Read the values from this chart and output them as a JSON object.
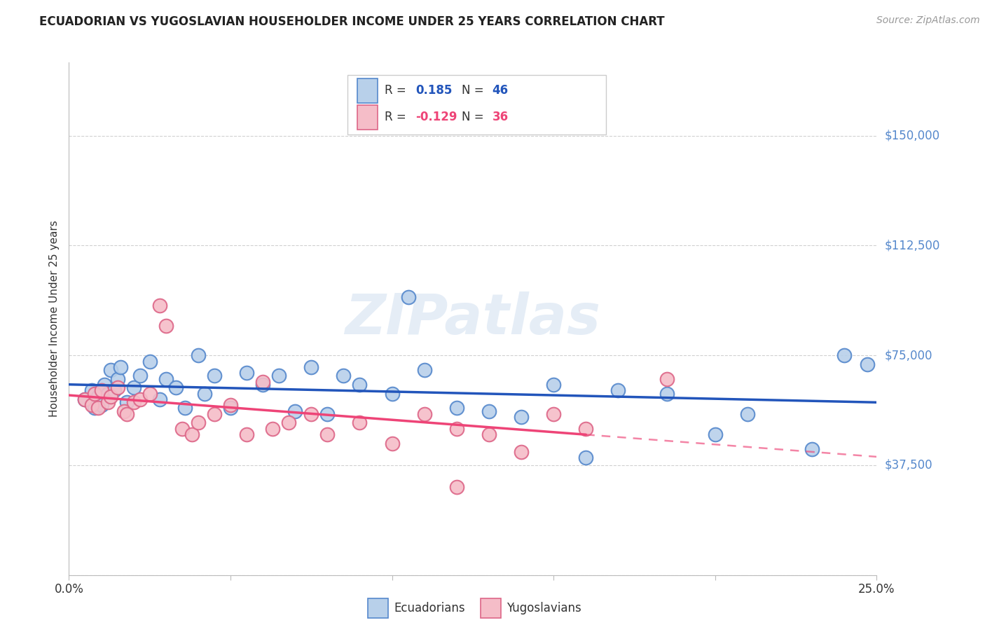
{
  "title": "ECUADORIAN VS YUGOSLAVIAN HOUSEHOLDER INCOME UNDER 25 YEARS CORRELATION CHART",
  "source": "Source: ZipAtlas.com",
  "ylabel": "Householder Income Under 25 years",
  "xlim": [
    0.0,
    0.25
  ],
  "ylim": [
    0,
    175000
  ],
  "yticks": [
    0,
    37500,
    75000,
    112500,
    150000
  ],
  "xticks": [
    0.0,
    0.05,
    0.1,
    0.15,
    0.2,
    0.25
  ],
  "xtick_labels": [
    "0.0%",
    "",
    "",
    "",
    "",
    "25.0%"
  ],
  "blue_face": "#B8D0EA",
  "blue_edge": "#5588CC",
  "pink_face": "#F5BDC8",
  "pink_edge": "#DD6688",
  "blue_line": "#2255BB",
  "pink_line": "#EE4477",
  "right_label_color": "#5588CC",
  "watermark_color": "#D0DFF0",
  "ecu_x": [
    0.005,
    0.007,
    0.008,
    0.009,
    0.01,
    0.011,
    0.012,
    0.013,
    0.014,
    0.015,
    0.016,
    0.018,
    0.02,
    0.022,
    0.025,
    0.028,
    0.03,
    0.033,
    0.036,
    0.04,
    0.042,
    0.045,
    0.05,
    0.055,
    0.06,
    0.065,
    0.07,
    0.075,
    0.08,
    0.085,
    0.09,
    0.1,
    0.105,
    0.11,
    0.12,
    0.13,
    0.14,
    0.15,
    0.16,
    0.17,
    0.185,
    0.2,
    0.21,
    0.23,
    0.24,
    0.247
  ],
  "ecu_y": [
    60000,
    63000,
    57000,
    61000,
    58000,
    65000,
    62000,
    70000,
    63000,
    67000,
    71000,
    59000,
    64000,
    68000,
    73000,
    60000,
    67000,
    64000,
    57000,
    75000,
    62000,
    68000,
    57000,
    69000,
    65000,
    68000,
    56000,
    71000,
    55000,
    68000,
    65000,
    62000,
    95000,
    70000,
    57000,
    56000,
    54000,
    65000,
    40000,
    63000,
    62000,
    48000,
    55000,
    43000,
    75000,
    72000
  ],
  "yug_x": [
    0.005,
    0.007,
    0.008,
    0.009,
    0.01,
    0.012,
    0.013,
    0.015,
    0.017,
    0.018,
    0.02,
    0.022,
    0.025,
    0.028,
    0.03,
    0.035,
    0.038,
    0.04,
    0.045,
    0.05,
    0.055,
    0.06,
    0.063,
    0.068,
    0.075,
    0.08,
    0.09,
    0.1,
    0.11,
    0.12,
    0.13,
    0.14,
    0.15,
    0.16,
    0.185,
    0.12
  ],
  "yug_y": [
    60000,
    58000,
    62000,
    57000,
    63000,
    59000,
    61000,
    64000,
    56000,
    55000,
    59000,
    60000,
    62000,
    92000,
    85000,
    50000,
    48000,
    52000,
    55000,
    58000,
    48000,
    66000,
    50000,
    52000,
    55000,
    48000,
    52000,
    45000,
    55000,
    50000,
    48000,
    42000,
    55000,
    50000,
    67000,
    30000
  ],
  "yug_solid_max": 0.16
}
